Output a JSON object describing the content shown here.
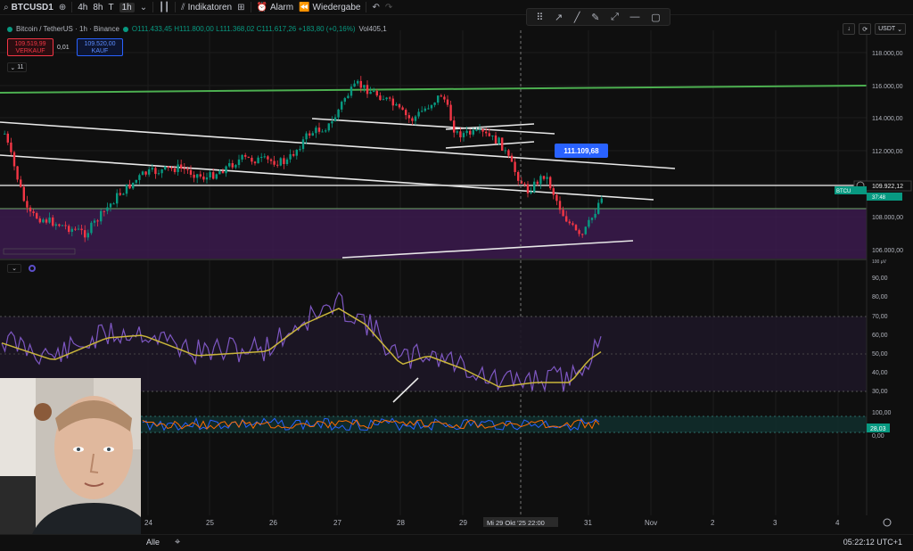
{
  "topbar": {
    "symbol": "BTCUSD1",
    "intervals": [
      "4h",
      "8h",
      "T",
      "1h"
    ],
    "active_interval": "1h",
    "indicators_label": "Indikatoren",
    "alarm_label": "Alarm",
    "replay_label": "Wiedergabe"
  },
  "legend": {
    "title": "Bitcoin / TetherUS · 1h · Binance",
    "ohlc": "O111.433,45 H111.800,00 L111.368,02 C111.617,26 +183,80 (+0,16%)",
    "volume": "Vol405,1"
  },
  "trade": {
    "sell_price": "109.519,99",
    "sell_label": "VERKAUF",
    "spread": "0,01",
    "buy_price": "109.520,00",
    "buy_label": "KAUF"
  },
  "collapse_count": "11",
  "top_right": {
    "currency": "USDT"
  },
  "price_axis": {
    "labels": [
      "118.000,00",
      "116.000,00",
      "114.000,00",
      "112.000,00",
      "110.000,00",
      "108.000,00",
      "106.000,00"
    ],
    "current_price": "109.922,12",
    "current_symbol": "BTCU",
    "countdown": "37:48",
    "volume_tag": "100 μV"
  },
  "annotation_price": "111.109,68",
  "rsi_axis": {
    "labels": [
      "90,00",
      "80,00",
      "70,00",
      "60,00",
      "50,00",
      "40,00",
      "30,00"
    ]
  },
  "stoch_axis": {
    "labels": [
      "100,00",
      "0,00"
    ],
    "current": "28,03"
  },
  "time_axis": {
    "labels": [
      "24",
      "25",
      "26",
      "27",
      "28",
      "29",
      "31",
      "Nov",
      "2",
      "3",
      "4"
    ],
    "crosshair": "Mi 29 Okt '25   22:00"
  },
  "bottombar": {
    "range_label": "Alle",
    "clock": "05:22:12 UTC+1"
  },
  "colors": {
    "up": "#089981",
    "down": "#f23645",
    "support_line": "#4caf50",
    "zone": "#4a1f5c",
    "rsi": "#7e57c2",
    "rsi_ma": "#c9b53a",
    "accent": "#2962ff"
  }
}
